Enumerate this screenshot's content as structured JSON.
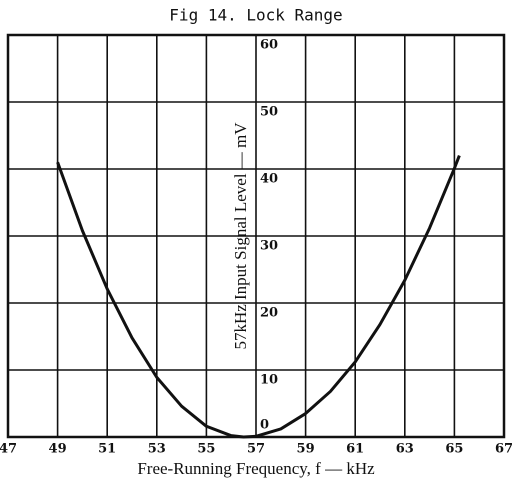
{
  "chart_data": {
    "type": "line",
    "title": "Fig 14. Lock Range",
    "x_label": "Free-Running Frequency, f — kHz",
    "y_label": "57kHz Input Signal Level — mV",
    "x": [
      49,
      50,
      51,
      52,
      53,
      54,
      55,
      56,
      56.5,
      57,
      58,
      59,
      60,
      61,
      62,
      63,
      64,
      65,
      65.2
    ],
    "series": [
      {
        "name": "Lock Range",
        "color": "#111111",
        "values": [
          41,
          30.8,
          22.1,
          14.8,
          8.9,
          4.6,
          1.6,
          0.2,
          0,
          0.1,
          1.2,
          3.5,
          6.8,
          11.2,
          16.8,
          23.4,
          31.2,
          40.1,
          42
        ]
      }
    ],
    "xlim": [
      47,
      67
    ],
    "xticks": [
      47,
      49,
      51,
      53,
      55,
      57,
      59,
      61,
      63,
      65,
      67
    ],
    "ylim": [
      0,
      60
    ],
    "yticks": [
      0,
      10,
      20,
      30,
      40,
      50,
      60
    ],
    "grid": true
  }
}
